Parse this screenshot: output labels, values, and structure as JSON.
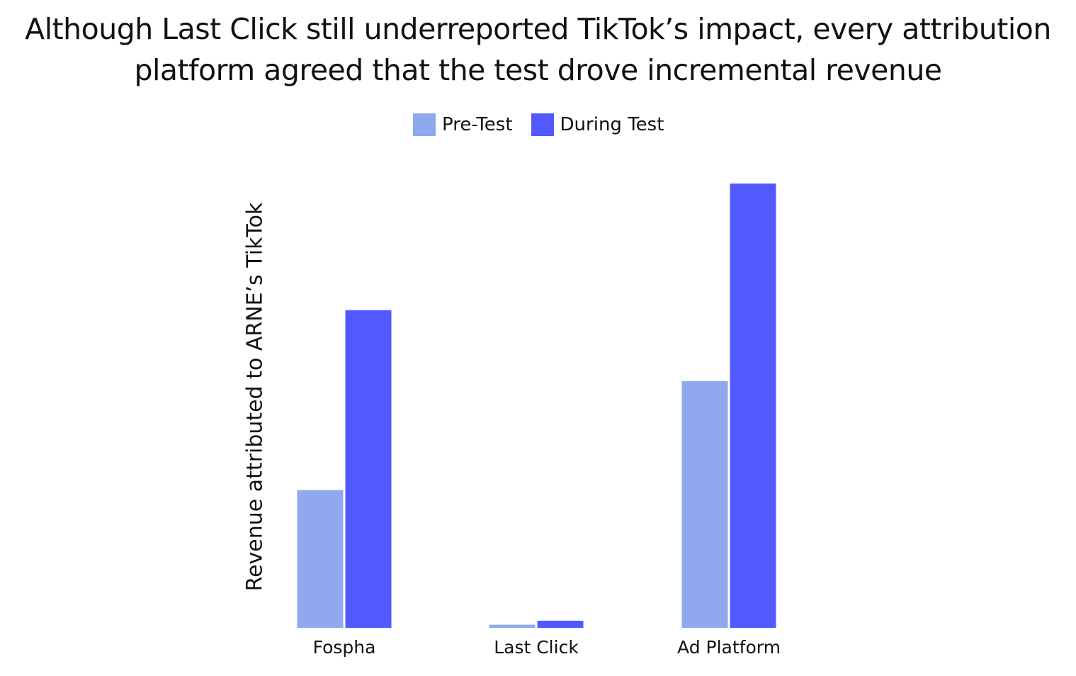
{
  "chart_data": {
    "type": "bar",
    "title": "Although Last Click still underreported TikTok’s impact, every attribution platform agreed that the test drove incremental revenue",
    "xlabel": "",
    "ylabel": "Revenue attributed to ARNE’s TikTok",
    "categories": [
      "Fospha",
      "Last Click",
      "Ad Platform"
    ],
    "series": [
      {
        "name": "Pre-Test",
        "color": "#8FA8EE",
        "values": [
          31,
          0.7,
          55.5
        ]
      },
      {
        "name": "During Test",
        "color": "#5259FF",
        "values": [
          71.5,
          1.6,
          100
        ]
      }
    ],
    "ylim": [
      0,
      100
    ],
    "grid": false,
    "legend_position": "top-center",
    "y_ticks_shown": false
  }
}
